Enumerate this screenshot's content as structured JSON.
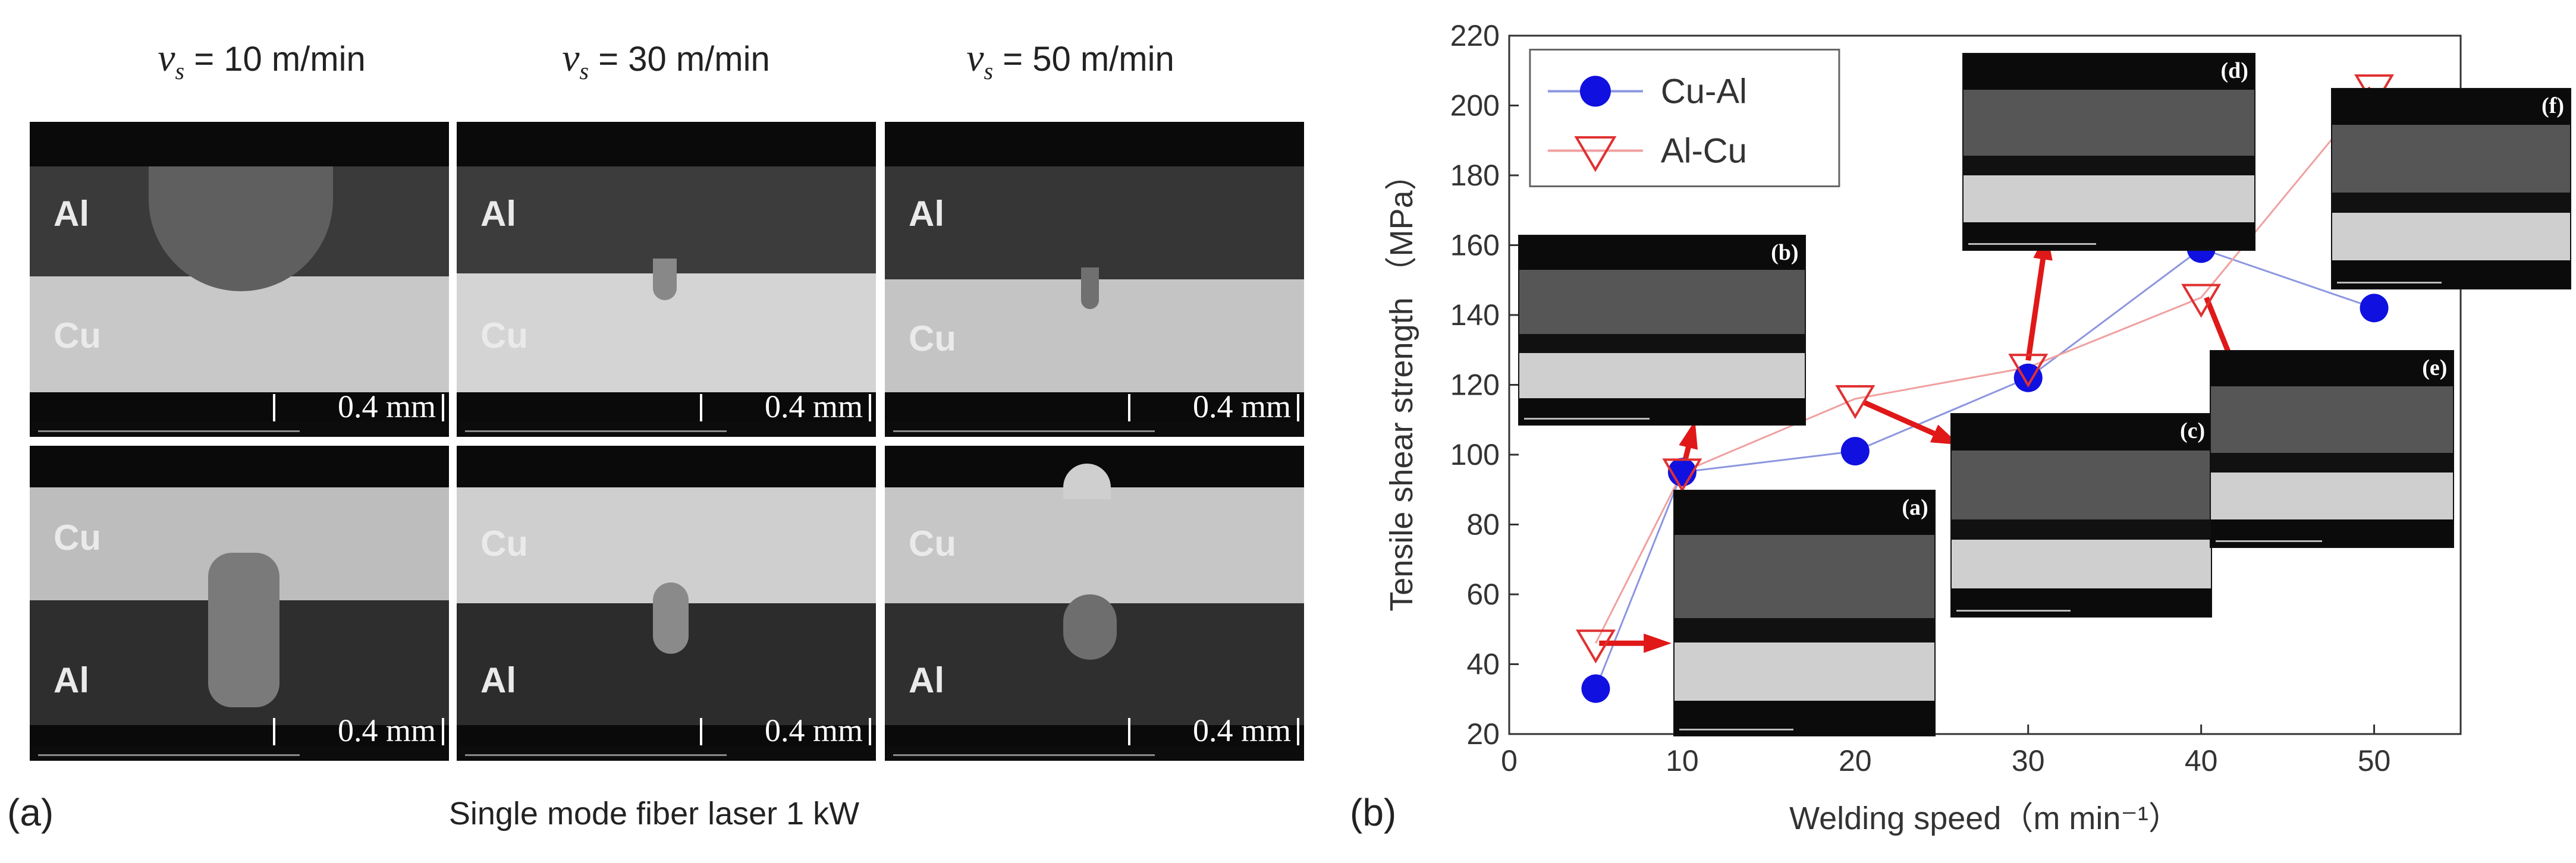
{
  "panel_a": {
    "label": "(a)",
    "caption": "Single mode fiber laser 1 kW",
    "speed_prefix": "v",
    "speed_subscript": "s",
    "columns": [
      " = 10 m/min",
      " = 30 m/min",
      " = 50 m/min"
    ],
    "top_row": {
      "upper_material": "Al",
      "lower_material": "Cu"
    },
    "bottom_row": {
      "upper_material": "Cu",
      "lower_material": "Al"
    },
    "scale_bar": "0.4 mm"
  },
  "panel_b": {
    "label": "(b)"
  },
  "chart_data": {
    "type": "line",
    "xlabel": "Welding speed（m min⁻¹）",
    "ylabel": "Tensile shear strength （MPa）",
    "xlim": [
      0,
      55
    ],
    "ylim": [
      20,
      220
    ],
    "xticks": [
      0,
      10,
      20,
      30,
      40,
      50
    ],
    "yticks": [
      20,
      40,
      60,
      80,
      100,
      120,
      140,
      160,
      180,
      200,
      220
    ],
    "grid": false,
    "legend": "top-left",
    "series": [
      {
        "name": "Cu-Al",
        "marker": "filled-circle",
        "color": "#1010e0",
        "line_color": "#8c96e0",
        "x": [
          5,
          10,
          20,
          30,
          40,
          50
        ],
        "y": [
          33,
          95,
          101,
          122,
          159,
          142
        ]
      },
      {
        "name": "Al-Cu",
        "marker": "open-triangle-down",
        "color": "#e03030",
        "line_color": "#f0a0a0",
        "x": [
          5,
          10,
          20,
          30,
          40,
          50
        ],
        "y": [
          46,
          95,
          116,
          125,
          145,
          205
        ]
      }
    ],
    "insets": [
      "(a)",
      "(b)",
      "(c)",
      "(d)",
      "(e)",
      "(f)"
    ]
  }
}
